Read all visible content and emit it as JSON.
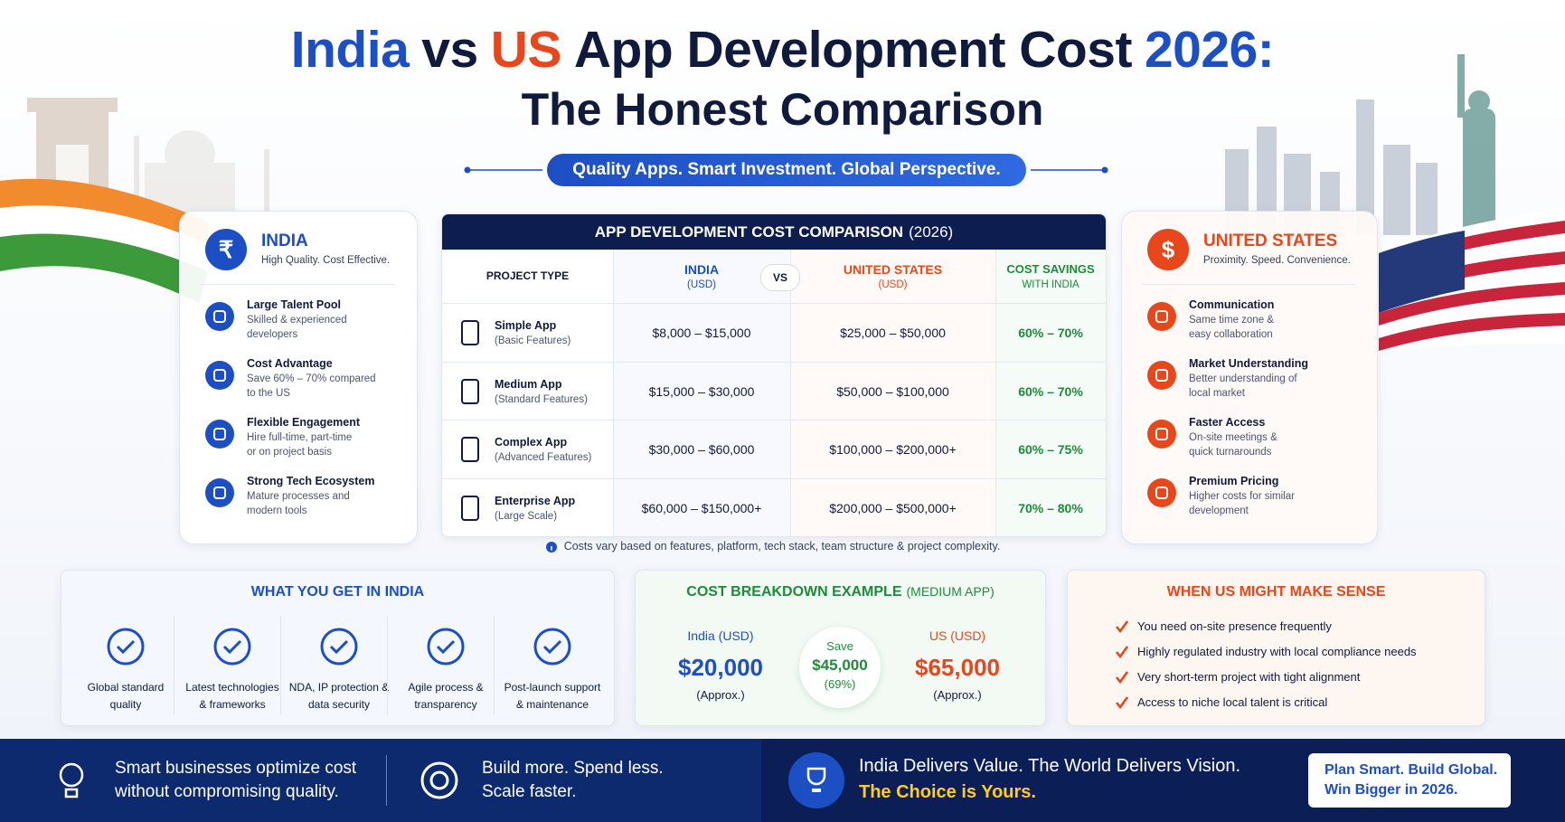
{
  "header": {
    "title_parts": [
      "India",
      "vs",
      "US",
      "App Development Cost",
      "2026:"
    ],
    "subtitle": "The Honest Comparison",
    "tagline": "Quality Apps. Smart Investment. Global Perspective."
  },
  "india_panel": {
    "symbol": "₹",
    "name": "INDIA",
    "tagline": "High Quality. Cost Effective.",
    "items": [
      {
        "title": "Large Talent Pool",
        "desc": [
          "Skilled & experienced",
          "developers"
        ]
      },
      {
        "title": "Cost Advantage",
        "desc": [
          "Save 60% – 70% compared",
          "to the US"
        ]
      },
      {
        "title": "Flexible Engagement",
        "desc": [
          "Hire full-time, part-time",
          "or on project basis"
        ]
      },
      {
        "title": "Strong Tech Ecosystem",
        "desc": [
          "Mature processes and",
          "modern tools"
        ]
      }
    ]
  },
  "us_panel": {
    "symbol": "$",
    "name": "UNITED STATES",
    "tagline": "Proximity. Speed. Convenience.",
    "items": [
      {
        "title": "Communication",
        "desc": [
          "Same time zone &",
          "easy collaboration"
        ]
      },
      {
        "title": "Market Understanding",
        "desc": [
          "Better understanding of",
          "local market"
        ]
      },
      {
        "title": "Faster Access",
        "desc": [
          "On-site meetings &",
          "quick turnarounds"
        ]
      },
      {
        "title": "Premium Pricing",
        "desc": [
          "Higher costs for similar",
          "development"
        ]
      }
    ]
  },
  "table": {
    "title": "APP DEVELOPMENT COST COMPARISON",
    "title_year": "(2026)",
    "headers": {
      "project_type": "PROJECT TYPE",
      "india": "INDIA",
      "india_unit": "(USD)",
      "vs": "VS",
      "us": "UNITED STATES",
      "us_unit": "(USD)",
      "savings": "COST SAVINGS",
      "savings_sub": "WITH INDIA"
    },
    "rows": [
      {
        "name": "Simple App",
        "sub": "(Basic Features)",
        "india": "$8,000 – $15,000",
        "us": "$25,000 – $50,000",
        "savings": "60% – 70%"
      },
      {
        "name": "Medium App",
        "sub": "(Standard Features)",
        "india": "$15,000 – $30,000",
        "us": "$50,000 – $100,000",
        "savings": "60% – 70%"
      },
      {
        "name": "Complex App",
        "sub": "(Advanced Features)",
        "india": "$30,000 – $60,000",
        "us": "$100,000 – $200,000+",
        "savings": "60% – 75%"
      },
      {
        "name": "Enterprise App",
        "sub": "(Large Scale)",
        "india": "$60,000 – $150,000+",
        "us": "$200,000 – $500,000+",
        "savings": "70% – 80%"
      }
    ],
    "note": "Costs vary based on features, platform, tech stack, team structure & project complexity."
  },
  "what_you_get": {
    "title": "WHAT YOU GET IN INDIA",
    "items": [
      [
        "Global standard",
        "quality"
      ],
      [
        "Latest technologies",
        "& frameworks"
      ],
      [
        "NDA, IP protection &",
        "data security"
      ],
      [
        "Agile process &",
        "transparency"
      ],
      [
        "Post-launch support",
        "& maintenance"
      ]
    ]
  },
  "cost_breakdown": {
    "title": "COST BREAKDOWN EXAMPLE",
    "title_sub": "(MEDIUM APP)",
    "india": {
      "label": "India (USD)",
      "amount": "$20,000",
      "note": "(Approx.)"
    },
    "save": {
      "label": "Save",
      "amount": "$45,000",
      "percent": "(69%)"
    },
    "us": {
      "label": "US (USD)",
      "amount": "$65,000",
      "note": "(Approx.)"
    }
  },
  "when_us": {
    "title": "WHEN US MIGHT MAKE SENSE",
    "items": [
      "You need on-site presence frequently",
      "Highly regulated industry with local compliance needs",
      "Very short-term project with tight alignment",
      "Access to niche local talent is critical"
    ]
  },
  "footer": {
    "point1": [
      "Smart businesses optimize cost",
      "without compromising quality."
    ],
    "point2": [
      "Build more. Spend less.",
      "Scale faster."
    ],
    "slogan": "India Delivers Value. The World Delivers Vision.",
    "slogan_highlight": "The Choice is Yours.",
    "cta": [
      "Plan Smart. Build Global.",
      "Win Bigger in 2026."
    ]
  }
}
